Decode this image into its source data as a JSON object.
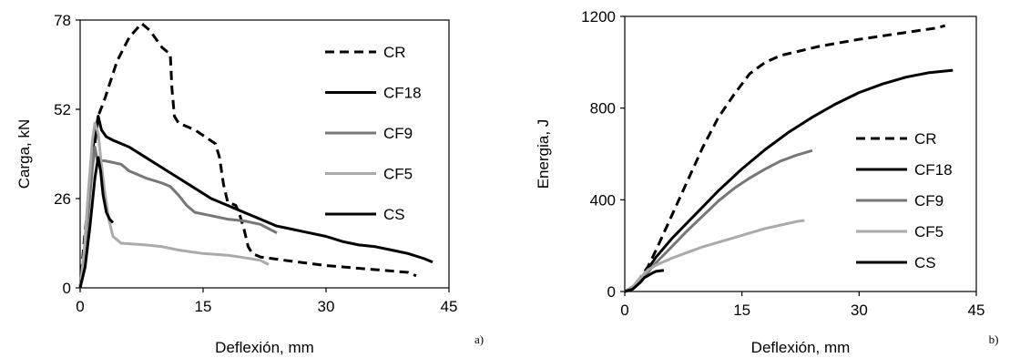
{
  "chart_data": [
    {
      "type": "line",
      "panel_label": "a)",
      "xlabel": "Deflexión, mm",
      "ylabel": "Carga, kN",
      "xlim": [
        0,
        45
      ],
      "ylim": [
        0,
        78
      ],
      "xticks": [
        "0",
        "15",
        "30",
        "45"
      ],
      "yticks": [
        "0",
        "26",
        "52",
        "78"
      ],
      "grid": false,
      "legend_position": "top-right",
      "series": [
        {
          "name": "CR",
          "color": "#000000",
          "dash": "dashed",
          "x": [
            0,
            0.5,
            1.2,
            2.2,
            3,
            4.5,
            6,
            7.5,
            8.5,
            10,
            10.5,
            11,
            11.2,
            11.5,
            12,
            14,
            16.5,
            17,
            17.5,
            18,
            19,
            19.5,
            20,
            20.5,
            21,
            22,
            25,
            30,
            35,
            40,
            41
          ],
          "y": [
            0,
            14,
            30,
            50,
            55,
            66,
            73,
            77,
            75,
            70,
            69,
            68,
            58,
            50,
            48,
            46,
            42,
            38,
            30,
            25,
            24,
            21,
            17,
            12,
            10,
            9,
            8,
            6.5,
            5.5,
            4.5,
            3.5
          ]
        },
        {
          "name": "CF18",
          "color": "#000000",
          "dash": "solid",
          "x": [
            0,
            0.5,
            1,
            1.5,
            2.2,
            2.6,
            3.2,
            4,
            6,
            8,
            10,
            12,
            14,
            16,
            18,
            20,
            22,
            24,
            25,
            27,
            30,
            32,
            34,
            36,
            38,
            40,
            42,
            43
          ],
          "y": [
            0,
            10,
            25,
            40,
            50,
            46,
            44,
            43,
            41,
            38,
            35,
            32,
            29,
            26,
            24,
            22,
            20,
            18,
            17.5,
            16.5,
            15,
            13.5,
            12.5,
            12,
            11,
            10,
            8.5,
            7.5
          ]
        },
        {
          "name": "CF9",
          "color": "#777777",
          "dash": "solid",
          "x": [
            0,
            0.5,
            1,
            1.5,
            1.8,
            2.1,
            2.4,
            3,
            4,
            5,
            6,
            8,
            10,
            11,
            12,
            13,
            14,
            16,
            18,
            20,
            22,
            24
          ],
          "y": [
            0,
            9,
            22,
            35,
            41,
            37,
            37,
            37,
            36.5,
            36,
            34,
            32,
            30.5,
            29.5,
            27,
            24,
            22,
            21,
            20,
            19.5,
            18.5,
            16
          ]
        },
        {
          "name": "CF5",
          "color": "#aaaaaa",
          "dash": "solid",
          "x": [
            0,
            0.5,
            1,
            1.5,
            1.8,
            2.2,
            2.5,
            3,
            3.5,
            4,
            5,
            8,
            10,
            12,
            15,
            18,
            20,
            22,
            23
          ],
          "y": [
            0,
            11,
            28,
            43,
            48,
            45,
            38,
            28,
            20,
            15,
            13,
            12.5,
            12,
            11,
            10,
            9.5,
            8.8,
            8,
            6.8
          ]
        },
        {
          "name": "CS",
          "color": "#000000",
          "dash": "solid",
          "x": [
            0,
            0.6,
            1.2,
            1.8,
            2.2,
            2.5,
            2.8,
            3.2,
            3.6,
            4
          ],
          "y": [
            0,
            6,
            18,
            32,
            38,
            34,
            27,
            22,
            20,
            19
          ]
        }
      ]
    },
    {
      "type": "line",
      "panel_label": "b)",
      "xlabel": "Deflexión, mm",
      "ylabel": "Energia, J",
      "xlim": [
        0,
        45
      ],
      "ylim": [
        0,
        1200
      ],
      "xticks": [
        "0",
        "15",
        "30",
        "45"
      ],
      "yticks": [
        "0",
        "400",
        "800",
        "1200"
      ],
      "grid": false,
      "legend_position": "center-right",
      "series": [
        {
          "name": "CR",
          "color": "#000000",
          "dash": "dashed",
          "x": [
            0,
            1,
            2,
            3,
            4,
            6,
            8,
            10,
            12,
            14,
            16,
            18,
            20,
            25,
            30,
            35,
            40,
            41
          ],
          "y": [
            0,
            20,
            60,
            110,
            180,
            330,
            480,
            630,
            760,
            860,
            950,
            1000,
            1030,
            1070,
            1100,
            1125,
            1150,
            1160
          ]
        },
        {
          "name": "CF18",
          "color": "#000000",
          "dash": "solid",
          "x": [
            0,
            1,
            2,
            3,
            4,
            6,
            8,
            10,
            12,
            15,
            18,
            21,
            24,
            27,
            30,
            33,
            36,
            39,
            42
          ],
          "y": [
            0,
            20,
            55,
            100,
            150,
            230,
            300,
            370,
            440,
            535,
            620,
            695,
            760,
            818,
            868,
            905,
            935,
            955,
            965
          ]
        },
        {
          "name": "CF9",
          "color": "#777777",
          "dash": "solid",
          "x": [
            0,
            1,
            2,
            3,
            4,
            6,
            8,
            10,
            12,
            14,
            16,
            18,
            20,
            22,
            24
          ],
          "y": [
            0,
            15,
            45,
            85,
            125,
            195,
            265,
            330,
            395,
            450,
            495,
            535,
            570,
            595,
            615
          ]
        },
        {
          "name": "CF5",
          "color": "#aaaaaa",
          "dash": "solid",
          "x": [
            0,
            1,
            2,
            3,
            4,
            5,
            6,
            8,
            10,
            12,
            14,
            16,
            18,
            20,
            22,
            23
          ],
          "y": [
            0,
            20,
            60,
            95,
            115,
            130,
            145,
            170,
            195,
            215,
            235,
            255,
            275,
            290,
            305,
            310
          ]
        },
        {
          "name": "CS",
          "color": "#000000",
          "dash": "solid",
          "x": [
            0,
            1,
            2,
            2.5,
            3,
            3.5,
            4,
            5
          ],
          "y": [
            0,
            10,
            40,
            60,
            70,
            80,
            88,
            92
          ]
        }
      ]
    }
  ]
}
